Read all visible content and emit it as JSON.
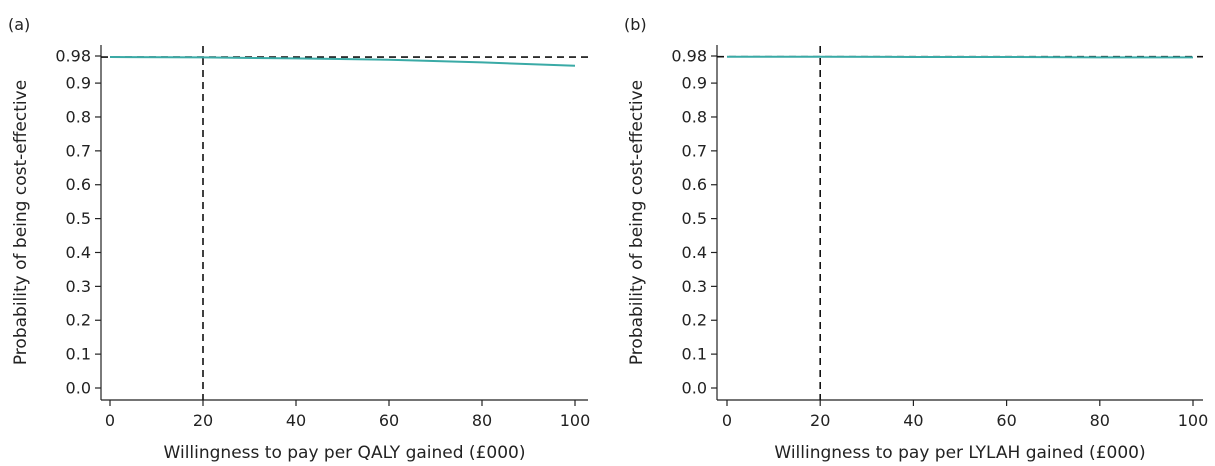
{
  "colors": {
    "curve": "#3aaaa6",
    "axis": "#222222",
    "reference": "#111111"
  },
  "chart_data": [
    {
      "type": "line",
      "panel_label": "(a)",
      "xlabel": "Willingness to pay per QALY gained (£000)",
      "ylabel": "Probability of being cost-effective",
      "xlim": [
        0,
        100
      ],
      "ylim": [
        0,
        0.98
      ],
      "x_ticks": [
        "0",
        "20",
        "40",
        "60",
        "80",
        "100"
      ],
      "y_ticks": [
        "0.0",
        "0.1",
        "0.2",
        "0.3",
        "0.4",
        "0.5",
        "0.6",
        "0.7",
        "0.8",
        "0.9",
        "0.98"
      ],
      "grid": false,
      "series": [
        {
          "x": [
            0,
            20,
            40,
            60,
            80,
            100
          ],
          "y": [
            0.977,
            0.976,
            0.973,
            0.969,
            0.961,
            0.951
          ]
        }
      ],
      "reference_lines": {
        "x": 20,
        "y": 0.977
      }
    },
    {
      "type": "line",
      "panel_label": "(b)",
      "xlabel": "Willingness to pay per LYLAH gained (£000)",
      "ylabel": "Probability of being cost-effective",
      "xlim": [
        0,
        100
      ],
      "ylim": [
        0,
        0.98
      ],
      "x_ticks": [
        "0",
        "20",
        "40",
        "60",
        "80",
        "100"
      ],
      "y_ticks": [
        "0.0",
        "0.1",
        "0.2",
        "0.3",
        "0.4",
        "0.5",
        "0.6",
        "0.7",
        "0.8",
        "0.9",
        "0.98"
      ],
      "grid": false,
      "series": [
        {
          "x": [
            0,
            20,
            40,
            60,
            80,
            100
          ],
          "y": [
            0.978,
            0.978,
            0.977,
            0.977,
            0.976,
            0.976
          ]
        }
      ],
      "reference_lines": {
        "x": 20,
        "y": 0.978
      }
    }
  ]
}
